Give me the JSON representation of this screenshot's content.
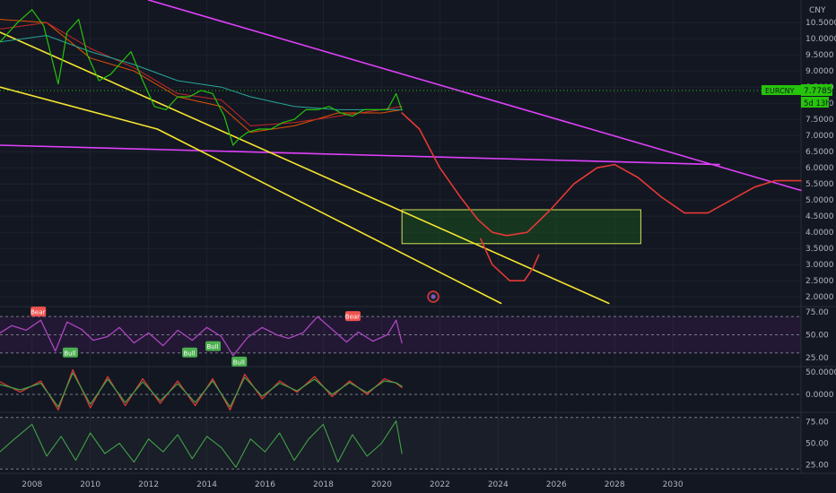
{
  "currency_label": "CNY",
  "symbol_tag": "EURCNY",
  "last_price": "7.7785",
  "countdown": "5d 13h",
  "colors": {
    "background": "#131722",
    "magenta": "#e040fb",
    "yellow": "#f5e52f",
    "projection": "#e53935",
    "box_border": "#d4e157",
    "box_fill": "#1b5e20",
    "price_tag": "#26c40a",
    "ma_orange": "#e65100",
    "ma_red": "#c62828",
    "ma_teal": "#26a69a",
    "rsi": "#ab47bc",
    "stoch_red": "#e53935",
    "stoch_green": "#43a047",
    "bull_badge": "#4caf50",
    "bear_badge": "#ef5350"
  },
  "chart_data": [
    {
      "type": "line",
      "name": "price",
      "ylim": [
        1.7,
        11.2
      ],
      "y_ticks": [
        2.0,
        2.5,
        3.0,
        3.5,
        4.0,
        4.5,
        5.0,
        5.5,
        6.0,
        6.5,
        7.0,
        7.5,
        8.0,
        8.5,
        9.0,
        9.5,
        10.0,
        10.5
      ],
      "y_tick_labels": [
        "2.0000",
        "2.5000",
        "3.0000",
        "3.5000",
        "4.0000",
        "4.5000",
        "5.0000",
        "5.5000",
        "6.0000",
        "6.5000",
        "7.0000",
        "7.5000",
        "8.0000",
        "8.5000",
        "9.0000",
        "9.5000",
        "10.0000",
        "10.5000"
      ],
      "xlim": [
        2006.9,
        2034.4
      ],
      "x_ticks": [
        2008,
        2010,
        2012,
        2014,
        2016,
        2018,
        2020,
        2022,
        2024,
        2026,
        2028,
        2030
      ],
      "x_tick_labels": [
        "2008",
        "2010",
        "2012",
        "2014",
        "2016",
        "2018",
        "2020",
        "2022",
        "2024",
        "2026",
        "2028",
        "2030"
      ],
      "price_path": {
        "x": [
          2006.9,
          2007.5,
          2008.0,
          2008.4,
          2008.9,
          2009.2,
          2009.6,
          2009.9,
          2010.3,
          2010.7,
          2011.0,
          2011.4,
          2011.8,
          2012.2,
          2012.6,
          2013.0,
          2013.4,
          2013.8,
          2014.2,
          2014.6,
          2014.9,
          2015.1,
          2015.4,
          2015.8,
          2016.2,
          2016.6,
          2017.0,
          2017.4,
          2017.8,
          2018.2,
          2018.6,
          2019.0,
          2019.4,
          2019.8,
          2020.2,
          2020.5,
          2020.7
        ],
        "y": [
          9.9,
          10.5,
          10.9,
          10.4,
          8.6,
          10.2,
          10.6,
          9.5,
          8.7,
          8.9,
          9.2,
          9.6,
          8.7,
          7.9,
          7.8,
          8.2,
          8.2,
          8.4,
          8.3,
          7.6,
          6.7,
          6.9,
          7.1,
          7.2,
          7.2,
          7.4,
          7.5,
          7.8,
          7.8,
          7.9,
          7.7,
          7.6,
          7.8,
          7.8,
          7.8,
          8.3,
          7.78
        ]
      },
      "moving_averages": [
        {
          "color": "#e65100",
          "x": [
            2006.9,
            2008.5,
            2010.0,
            2011.5,
            2013.0,
            2014.5,
            2015.5,
            2017.0,
            2018.5,
            2020.0,
            2020.7
          ],
          "y": [
            10.6,
            10.5,
            9.4,
            9.0,
            8.2,
            7.9,
            7.1,
            7.3,
            7.7,
            7.7,
            7.8
          ]
        },
        {
          "color": "#c62828",
          "x": [
            2006.9,
            2008.5,
            2010.0,
            2011.5,
            2013.0,
            2014.5,
            2015.5,
            2017.0,
            2018.5,
            2020.0,
            2020.7
          ],
          "y": [
            10.3,
            10.5,
            9.7,
            9.1,
            8.3,
            8.1,
            7.3,
            7.4,
            7.6,
            7.8,
            7.9
          ]
        },
        {
          "color": "#26a69a",
          "x": [
            2006.9,
            2008.5,
            2010.0,
            2011.5,
            2013.0,
            2014.5,
            2015.5,
            2017.0,
            2018.5,
            2020.0,
            2020.7
          ],
          "y": [
            9.9,
            10.1,
            9.6,
            9.2,
            8.7,
            8.5,
            8.2,
            7.9,
            7.8,
            7.8,
            7.8
          ]
        }
      ],
      "trendlines": [
        {
          "color": "#e040fb",
          "x": [
            2012.0,
            2034.4
          ],
          "y": [
            11.2,
            5.3
          ]
        },
        {
          "color": "#e040fb",
          "x": [
            2006.9,
            2031.6
          ],
          "y": [
            6.7,
            6.1
          ]
        },
        {
          "color": "#f5e52f",
          "x": [
            2006.9,
            2027.8
          ],
          "y": [
            10.2,
            1.8
          ]
        },
        {
          "color": "#f5e52f",
          "x": [
            2006.9,
            2012.3,
            2024.1
          ],
          "y": [
            8.5,
            7.2,
            1.8
          ]
        }
      ],
      "target_box": {
        "x0": 2020.7,
        "x1": 2028.9,
        "y0": 3.65,
        "y1": 4.7
      },
      "projection_path": {
        "x": [
          2020.7,
          2021.3,
          2022.0,
          2022.7,
          2023.3,
          2023.8,
          2024.3,
          2025.0,
          2025.8,
          2026.6,
          2027.4,
          2028.0,
          2028.8,
          2029.6,
          2030.4,
          2031.2,
          2032.0,
          2032.8,
          2033.5,
          2034.4
        ],
        "y": [
          7.7,
          7.2,
          6.0,
          5.1,
          4.4,
          4.0,
          3.9,
          4.0,
          4.7,
          5.5,
          6.0,
          6.1,
          5.7,
          5.1,
          4.6,
          4.6,
          5.0,
          5.4,
          5.6,
          5.6
        ]
      },
      "projection_branch": {
        "x": [
          2023.4,
          2023.8,
          2024.4,
          2024.9,
          2025.2,
          2025.4
        ],
        "y": [
          3.8,
          3.0,
          2.5,
          2.5,
          2.9,
          3.3
        ]
      }
    },
    {
      "type": "line",
      "name": "RSI",
      "ylim": [
        15,
        80
      ],
      "y_ticks": [
        25,
        50,
        75
      ],
      "y_tick_labels": [
        "25.00",
        "50.00",
        "75.00"
      ],
      "guides": [
        30,
        50,
        70
      ],
      "x": [
        2006.9,
        2007.3,
        2007.8,
        2008.3,
        2008.8,
        2009.2,
        2009.7,
        2010.1,
        2010.6,
        2011.0,
        2011.5,
        2012.0,
        2012.5,
        2013.0,
        2013.5,
        2014.0,
        2014.5,
        2014.9,
        2015.4,
        2015.9,
        2016.4,
        2016.8,
        2017.3,
        2017.8,
        2018.3,
        2018.8,
        2019.2,
        2019.7,
        2020.2,
        2020.5,
        2020.7
      ],
      "y": [
        52,
        60,
        55,
        66,
        32,
        64,
        56,
        44,
        48,
        58,
        41,
        52,
        38,
        55,
        44,
        58,
        48,
        27,
        47,
        58,
        50,
        46,
        52,
        70,
        56,
        42,
        53,
        43,
        50,
        66,
        41
      ],
      "badges": [
        {
          "label": "Bear",
          "x": 2008.2,
          "y": 75
        },
        {
          "label": "Bull",
          "x": 2009.3,
          "y": 30
        },
        {
          "label": "Bull",
          "x": 2013.4,
          "y": 30
        },
        {
          "label": "Bull",
          "x": 2014.2,
          "y": 37
        },
        {
          "label": "Bull",
          "x": 2015.1,
          "y": 20
        },
        {
          "label": "Bear",
          "x": 2019.0,
          "y": 70
        }
      ]
    },
    {
      "type": "line",
      "name": "oscillator",
      "ylim": [
        -40,
        60
      ],
      "y_ticks": [
        0,
        50
      ],
      "y_tick_labels": [
        "0.0000",
        "50.0000"
      ],
      "guides": [
        0
      ],
      "series": [
        {
          "color": "#e53935",
          "x": [
            2006.9,
            2007.6,
            2008.3,
            2008.9,
            2009.4,
            2010.0,
            2010.6,
            2011.2,
            2011.8,
            2012.4,
            2013.0,
            2013.6,
            2014.2,
            2014.8,
            2015.3,
            2015.9,
            2016.5,
            2017.1,
            2017.7,
            2018.3,
            2018.9,
            2019.5,
            2020.1,
            2020.5,
            2020.7
          ],
          "y": [
            28,
            5,
            30,
            -35,
            55,
            -30,
            40,
            -25,
            35,
            -20,
            30,
            -25,
            35,
            -35,
            45,
            -10,
            30,
            5,
            40,
            -5,
            30,
            0,
            35,
            25,
            15
          ]
        },
        {
          "color": "#43a047",
          "x": [
            2006.9,
            2007.6,
            2008.3,
            2008.9,
            2009.4,
            2010.0,
            2010.6,
            2011.2,
            2011.8,
            2012.4,
            2013.0,
            2013.6,
            2014.2,
            2014.8,
            2015.3,
            2015.9,
            2016.5,
            2017.1,
            2017.7,
            2018.3,
            2018.9,
            2019.5,
            2020.1,
            2020.5,
            2020.7
          ],
          "y": [
            22,
            10,
            25,
            -28,
            48,
            -22,
            34,
            -18,
            28,
            -14,
            24,
            -18,
            30,
            -28,
            38,
            -4,
            25,
            8,
            34,
            0,
            26,
            4,
            30,
            26,
            18
          ]
        }
      ]
    },
    {
      "type": "line",
      "name": "stochastic",
      "ylim": [
        15,
        85
      ],
      "y_ticks": [
        25,
        50,
        75
      ],
      "y_tick_labels": [
        "25.00",
        "50.00",
        "75.00"
      ],
      "guides": [
        20,
        80
      ],
      "x": [
        2006.9,
        2007.4,
        2008.0,
        2008.5,
        2009.0,
        2009.5,
        2010.0,
        2010.5,
        2011.0,
        2011.5,
        2012.0,
        2012.5,
        2013.0,
        2013.5,
        2014.0,
        2014.5,
        2015.0,
        2015.5,
        2016.0,
        2016.5,
        2017.0,
        2017.5,
        2018.0,
        2018.5,
        2019.0,
        2019.5,
        2020.0,
        2020.5,
        2020.7
      ],
      "y": [
        40,
        55,
        72,
        35,
        58,
        30,
        62,
        38,
        50,
        28,
        55,
        40,
        60,
        32,
        58,
        45,
        22,
        55,
        40,
        62,
        30,
        55,
        72,
        28,
        60,
        35,
        50,
        76,
        38
      ]
    }
  ]
}
